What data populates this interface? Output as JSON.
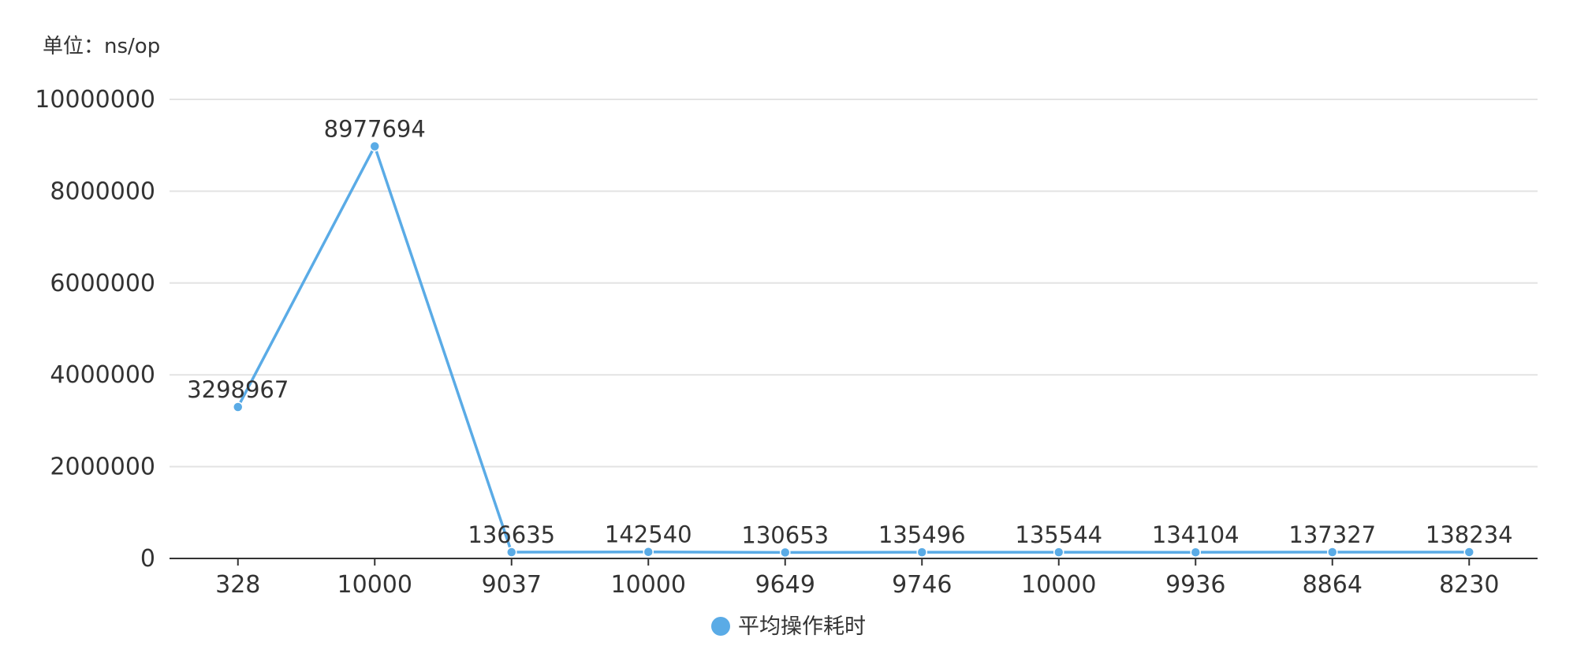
{
  "unit_label": "单位：ns/op",
  "chart_data": {
    "type": "line",
    "categories": [
      "328",
      "10000",
      "9037",
      "10000",
      "9649",
      "9746",
      "10000",
      "9936",
      "8864",
      "8230"
    ],
    "series": [
      {
        "name": "平均操作耗时",
        "values": [
          3298967,
          8977694,
          136635,
          142540,
          130653,
          135496,
          135544,
          134104,
          137327,
          138234
        ]
      }
    ],
    "ylim": [
      0,
      10000000
    ],
    "yticks": [
      0,
      2000000,
      4000000,
      6000000,
      8000000,
      10000000
    ],
    "ytick_labels": [
      "0",
      "2000000",
      "4000000",
      "6000000",
      "8000000",
      "10000000"
    ],
    "grid": true,
    "legend_position": "bottom",
    "colors": {
      "series": "#5aabe6",
      "grid": "#e3e3e3",
      "axis": "#333333"
    }
  }
}
